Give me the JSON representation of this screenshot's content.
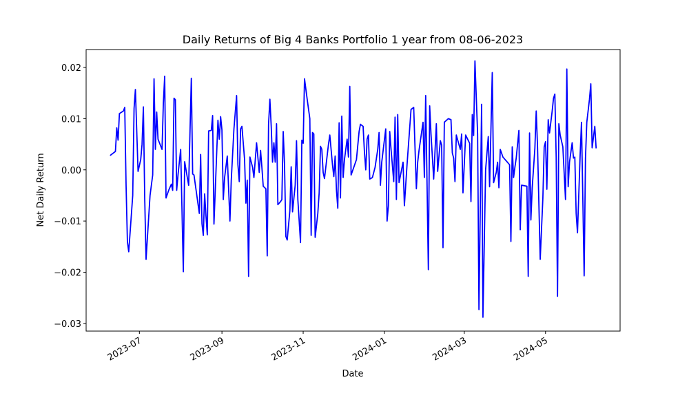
{
  "chart_data": {
    "type": "line",
    "title": "Daily Returns of Big 4 Banks Portfolio 1 year from 08-06-2023",
    "x_label": "Date",
    "y_label": "Net Daily Return",
    "color": "#0000ff",
    "x": [
      19517,
      19521,
      19522,
      19523,
      19524,
      19527,
      19528,
      19529,
      19530,
      19531,
      19534,
      19535,
      19536,
      19538,
      19540,
      19541,
      19542,
      19543,
      19544,
      19547,
      19549,
      19550,
      19551,
      19552,
      19553,
      19556,
      19557,
      19558,
      19559,
      19561,
      19563,
      19564,
      19565,
      19566,
      19567,
      19568,
      19570,
      19572,
      19573,
      19575,
      19576,
      19578,
      19579,
      19580,
      19584,
      19585,
      19586,
      19587,
      19588,
      19589,
      19590,
      19591,
      19593,
      19594,
      19595,
      19598,
      19599,
      19600,
      19601,
      19602,
      19603,
      19605,
      19607,
      19608,
      19610,
      19612,
      19613,
      19614,
      19615,
      19616,
      19618,
      19619,
      19620,
      19621,
      19622,
      19624,
      19625,
      19627,
      19629,
      19630,
      19631,
      19632,
      19634,
      19635,
      19636,
      19637,
      19638,
      19639,
      19640,
      19641,
      19642,
      19643,
      19645,
      19646,
      19647,
      19648,
      19649,
      19650,
      19652,
      19653,
      19654,
      19656,
      19657,
      19658,
      19660,
      19661,
      19662,
      19663,
      19665,
      19667,
      19668,
      19669,
      19670,
      19671,
      19673,
      19674,
      19675,
      19676,
      19677,
      19678,
      19681,
      19682,
      19684,
      19685,
      19686,
      19687,
      19688,
      19689,
      19690,
      19691,
      19692,
      19693,
      19695,
      19696,
      19697,
      19698,
      19700,
      19702,
      19704,
      19705,
      19707,
      19708,
      19709,
      19710,
      19711,
      19712,
      19714,
      19716,
      19718,
      19719,
      19720,
      19721,
      19724,
      19725,
      19726,
      19727,
      19728,
      19730,
      19731,
      19732,
      19733,
      19734,
      19737,
      19738,
      19740,
      19743,
      19745,
      19747,
      19748,
      19749,
      19752,
      19753,
      19754,
      19756,
      19757,
      19758,
      19760,
      19762,
      19763,
      19765,
      19766,
      19767,
      19768,
      19771,
      19773,
      19774,
      19775,
      19776,
      19777,
      19780,
      19781,
      19782,
      19784,
      19787,
      19788,
      19789,
      19790,
      19791,
      19793,
      19794,
      19796,
      19797,
      19799,
      19801,
      19802,
      19804,
      19805,
      19807,
      19808,
      19809,
      19810,
      19812,
      19817,
      19818,
      19819,
      19820,
      19821,
      19822,
      19824,
      19825,
      19826,
      19830,
      19831,
      19832,
      19833,
      19834,
      19836,
      19837,
      19838,
      19840,
      19842,
      19843,
      19844,
      19845,
      19846,
      19847,
      19849,
      19850,
      19851,
      19852,
      19853,
      19854,
      19855,
      19857,
      19859,
      19860,
      19861,
      19862,
      19864,
      19865,
      19866,
      19867,
      19868,
      19870,
      19871,
      19872,
      19873,
      19874,
      19875,
      19877,
      19878,
      19879,
      19881,
      19882
    ],
    "values": [
      0.0028,
      0.0036,
      0.0082,
      0.0058,
      0.011,
      0.0115,
      0.0122,
      -0.003,
      -0.014,
      -0.016,
      -0.005,
      0.012,
      0.0157,
      -0.0003,
      0.002,
      0.005,
      0.0123,
      -0.0055,
      -0.0175,
      -0.005,
      -0.001,
      0.0178,
      0.004,
      0.0113,
      0.006,
      0.004,
      0.013,
      0.0183,
      -0.0055,
      -0.004,
      -0.0028,
      -0.004,
      0.014,
      0.0137,
      -0.004,
      -0.001,
      0.004,
      -0.0199,
      0.0016,
      -0.0015,
      -0.003,
      0.0179,
      -0.0008,
      -0.001,
      -0.0085,
      0.003,
      -0.0105,
      -0.0128,
      -0.0047,
      -0.009,
      -0.0127,
      0.0076,
      0.0077,
      0.0106,
      -0.0106,
      0.0097,
      0.006,
      0.0104,
      0.0078,
      -0.0058,
      -0.0015,
      0.0027,
      -0.01,
      -0.002,
      0.008,
      0.0145,
      0.001,
      -0.0023,
      0.008,
      0.0085,
      0.002,
      -0.0065,
      -0.002,
      -0.0208,
      0.0025,
      0.0005,
      -0.0015,
      0.0053,
      -0.0005,
      0.0038,
      0.0005,
      -0.0032,
      -0.0037,
      -0.0168,
      0.0089,
      0.0138,
      0.0085,
      0.0015,
      0.0053,
      0.0015,
      0.009,
      -0.0068,
      -0.0062,
      -0.0058,
      0.0075,
      0.001,
      -0.013,
      -0.0137,
      -0.008,
      0.0006,
      -0.0082,
      -0.003,
      0.0057,
      -0.0058,
      -0.0142,
      0.0058,
      0.0052,
      0.0178,
      0.0138,
      0.01,
      -0.0128,
      0.0073,
      0.007,
      -0.0132,
      -0.0085,
      -0.0045,
      0.0046,
      0.004,
      -0.0005,
      -0.0017,
      0.005,
      0.0068,
      0.001,
      -0.0013,
      0.0027,
      -0.004,
      -0.0075,
      0.0092,
      -0.0055,
      0.0105,
      -0.0015,
      0.002,
      0.006,
      0.0025,
      0.0163,
      -0.001,
      0.0005,
      0.002,
      0.0075,
      0.0089,
      0.0085,
      0.0035,
      0.0,
      0.006,
      0.0068,
      -0.0018,
      -0.0015,
      0.0005,
      0.004,
      0.0073,
      -0.003,
      0.0015,
      0.008,
      -0.01,
      -0.007,
      0.0075,
      0.004,
      -0.0023,
      0.0103,
      -0.0058,
      0.0108,
      -0.0025,
      0.0015,
      -0.007,
      0.001,
      0.0118,
      0.0122,
      -0.0037,
      0.0015,
      0.0038,
      0.0093,
      -0.0015,
      0.0145,
      -0.0195,
      0.0125,
      0.007,
      -0.0018,
      0.009,
      -0.0003,
      0.0057,
      0.0048,
      -0.0152,
      0.0093,
      0.01,
      0.0098,
      0.0033,
      0.0023,
      -0.0023,
      0.0068,
      0.004,
      0.007,
      -0.0045,
      0.0068,
      0.0052,
      -0.0062,
      0.0108,
      0.0067,
      0.0213,
      0.007,
      -0.0273,
      0.0128,
      -0.0288,
      0.0,
      0.0065,
      -0.0033,
      0.019,
      -0.0025,
      -0.0005,
      0.0015,
      -0.0035,
      0.004,
      0.0025,
      0.001,
      -0.014,
      0.0045,
      -0.0015,
      0.0005,
      0.0023,
      0.0077,
      -0.0117,
      -0.003,
      -0.0032,
      -0.0208,
      0.0072,
      -0.0098,
      -0.0035,
      0.0042,
      0.0115,
      0.0045,
      -0.0175,
      -0.0055,
      0.0045,
      0.0055,
      -0.0038,
      0.0098,
      0.0072,
      0.0115,
      0.014,
      0.0148,
      0.0025,
      -0.0247,
      0.009,
      0.0068,
      0.0045,
      -0.0058,
      0.0197,
      -0.0033,
      0.0015,
      0.0053,
      0.0023,
      0.0025,
      -0.0085,
      -0.0123,
      0.003,
      0.0093,
      -0.0055,
      -0.0207,
      0.0023,
      0.0093,
      0.0138,
      0.0168,
      0.0043,
      0.0085,
      0.0042
    ],
    "xlim": [
      19499,
      19900
    ],
    "xticks": [
      {
        "value": 19539,
        "label": "2023-07"
      },
      {
        "value": 19601,
        "label": "2023-09"
      },
      {
        "value": 19662,
        "label": "2023-11"
      },
      {
        "value": 19723,
        "label": "2024-01"
      },
      {
        "value": 19783,
        "label": "2024-03"
      },
      {
        "value": 19844,
        "label": "2024-05"
      }
    ],
    "ylim": [
      -0.0315,
      0.0235
    ],
    "yticks": [
      {
        "value": -0.03,
        "label": "−0.03"
      },
      {
        "value": -0.02,
        "label": "−0.02"
      },
      {
        "value": -0.01,
        "label": "−0.01"
      },
      {
        "value": 0,
        "label": "0.00"
      },
      0.01,
      0.02
    ],
    "grid": false
  }
}
